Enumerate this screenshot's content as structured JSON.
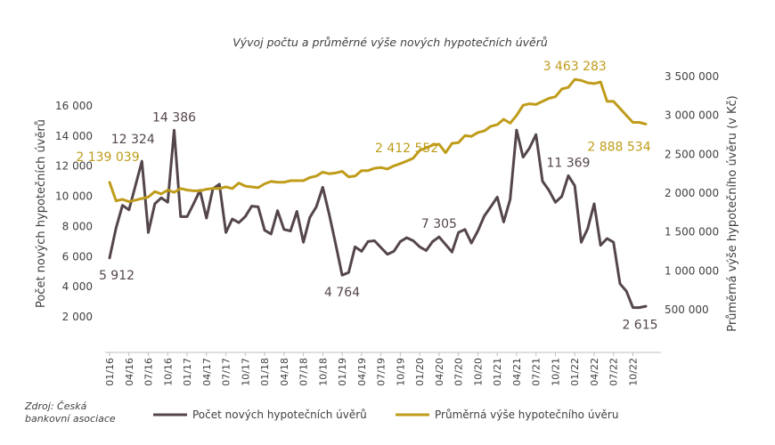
{
  "chart_data": {
    "type": "line",
    "title": "Vývoj počtu a průměrné výše nových hypotečních úvěrů",
    "source": [
      "Zdroj: Česká",
      "bankovní asociace"
    ],
    "y_left_label": "Počet nových hypotečních úvěrů",
    "y_right_label": "Průměrná výše hypotečního úvěru (v Kč)",
    "y_left_ticks": [
      "2 000",
      "4 000",
      "6 000",
      "8 000",
      "10 000",
      "12 000",
      "14 000",
      "16 000"
    ],
    "y_left_tick_values": [
      2000,
      4000,
      6000,
      8000,
      10000,
      12000,
      14000,
      16000
    ],
    "ylim_left": [
      0,
      16000
    ],
    "y_right_ticks": [
      "500 000",
      "1 000 000",
      "1 500 000",
      "2 000 000",
      "2 500 000",
      "3 000 000",
      "3 500 000"
    ],
    "y_right_tick_values": [
      500000,
      1000000,
      1500000,
      2000000,
      2500000,
      3000000,
      3500000
    ],
    "ylim_right": [
      0,
      3500000
    ],
    "x_tick_labels": [
      "01/16",
      "04/16",
      "07/16",
      "10/16",
      "01/17",
      "04/17",
      "07/17",
      "10/17",
      "01/18",
      "04/18",
      "07/18",
      "10/18",
      "01/19",
      "04/19",
      "07/19",
      "10/19",
      "01/20",
      "04/20",
      "07/20",
      "10/20",
      "01/21",
      "04/21",
      "07/21",
      "10/21",
      "01/22",
      "04/22",
      "07/22",
      "10/22"
    ],
    "x": [
      "01/16",
      "02/16",
      "03/16",
      "04/16",
      "05/16",
      "06/16",
      "07/16",
      "08/16",
      "09/16",
      "10/16",
      "11/16",
      "12/16",
      "01/17",
      "02/17",
      "03/17",
      "04/17",
      "05/17",
      "06/17",
      "07/17",
      "08/17",
      "09/17",
      "10/17",
      "11/17",
      "12/17",
      "01/18",
      "02/18",
      "03/18",
      "04/18",
      "05/18",
      "06/18",
      "07/18",
      "08/18",
      "09/18",
      "10/18",
      "11/18",
      "12/18",
      "01/19",
      "02/19",
      "03/19",
      "04/19",
      "05/19",
      "06/19",
      "07/19",
      "08/19",
      "09/19",
      "10/19",
      "11/19",
      "12/19",
      "01/20",
      "02/20",
      "03/20",
      "04/20",
      "05/20",
      "06/20",
      "07/20",
      "08/20",
      "09/20",
      "10/20",
      "11/20",
      "12/20",
      "01/21",
      "02/21",
      "03/21",
      "04/21",
      "05/21",
      "06/21",
      "07/21",
      "08/21",
      "09/21",
      "10/21",
      "11/21",
      "12/21",
      "01/22",
      "02/22",
      "03/22",
      "04/22",
      "05/22",
      "06/22",
      "07/22",
      "08/22",
      "09/22",
      "10/22",
      "11/22",
      "12/22"
    ],
    "series": [
      {
        "name": "Počet nových hypotečních úvěrů",
        "color": "#54464b",
        "axis": "left",
        "values": [
          5912,
          7900,
          9400,
          9100,
          10700,
          12324,
          7600,
          9500,
          9900,
          9600,
          14386,
          8650,
          8650,
          9500,
          10400,
          8550,
          10500,
          10800,
          7600,
          8500,
          8250,
          8650,
          9350,
          9300,
          7750,
          7500,
          9050,
          7800,
          7700,
          9000,
          6950,
          8600,
          9300,
          10600,
          8800,
          6800,
          4764,
          4950,
          6650,
          6350,
          7000,
          7050,
          6600,
          6150,
          6350,
          7000,
          7250,
          7050,
          6650,
          6400,
          7000,
          7305,
          6800,
          6300,
          7600,
          7800,
          6900,
          7700,
          8700,
          9300,
          9950,
          8300,
          9800,
          14400,
          12600,
          13200,
          14100,
          11000,
          10400,
          9600,
          10000,
          11369,
          10700,
          6950,
          7850,
          9500,
          6750,
          7200,
          6950,
          4200,
          3700,
          2615,
          2615,
          2700
        ]
      },
      {
        "name": "Průměrná výše hypotečního úvěru",
        "color": "#bf9c1a",
        "axis": "right",
        "values": [
          2139039,
          1900000,
          1920000,
          1890000,
          1910000,
          1930000,
          1950000,
          2020000,
          1990000,
          2040000,
          2010000,
          2060000,
          2040000,
          2030000,
          2030000,
          2050000,
          2060000,
          2060000,
          2080000,
          2060000,
          2130000,
          2090000,
          2080000,
          2070000,
          2120000,
          2150000,
          2140000,
          2140000,
          2160000,
          2160000,
          2160000,
          2200000,
          2220000,
          2270000,
          2250000,
          2260000,
          2280000,
          2210000,
          2220000,
          2290000,
          2290000,
          2320000,
          2330000,
          2310000,
          2350000,
          2380000,
          2412552,
          2450000,
          2550000,
          2580000,
          2620000,
          2630000,
          2520000,
          2640000,
          2650000,
          2740000,
          2730000,
          2780000,
          2800000,
          2860000,
          2880000,
          2950000,
          2900000,
          3000000,
          3130000,
          3150000,
          3140000,
          3180000,
          3220000,
          3240000,
          3340000,
          3360000,
          3463283,
          3450000,
          3420000,
          3410000,
          3430000,
          3180000,
          3180000,
          3090000,
          3000000,
          2910000,
          2910000,
          2888534
        ]
      }
    ],
    "annotations": [
      {
        "series": 0,
        "index": 0,
        "text": "5 912",
        "pos": "below"
      },
      {
        "series": 0,
        "index": 5,
        "text": "12 324",
        "pos": "left-above"
      },
      {
        "series": 0,
        "index": 10,
        "text": "14 386",
        "pos": "above"
      },
      {
        "series": 0,
        "index": 36,
        "text": "4 764",
        "pos": "below"
      },
      {
        "series": 0,
        "index": 51,
        "text": "7 305",
        "pos": "above"
      },
      {
        "series": 0,
        "index": 71,
        "text": "11 369",
        "pos": "above"
      },
      {
        "series": 0,
        "index": 81,
        "text": "2 615",
        "pos": "below"
      },
      {
        "series": 1,
        "index": 0,
        "text": "2 139 039",
        "pos": "above"
      },
      {
        "series": 1,
        "index": 46,
        "text": "2 412 552",
        "pos": "above"
      },
      {
        "series": 1,
        "index": 72,
        "text": "3 463 283",
        "pos": "above"
      },
      {
        "series": 1,
        "index": 83,
        "text": "2 888 534",
        "pos": "below-left"
      }
    ],
    "legend": [
      {
        "label": "Počet nových hypotečních úvěrů",
        "color": "#54464b"
      },
      {
        "label": "Průměrná výše hypotečního úvěru",
        "color": "#bf9c1a"
      }
    ],
    "legend_position": "bottom",
    "grid": false
  }
}
